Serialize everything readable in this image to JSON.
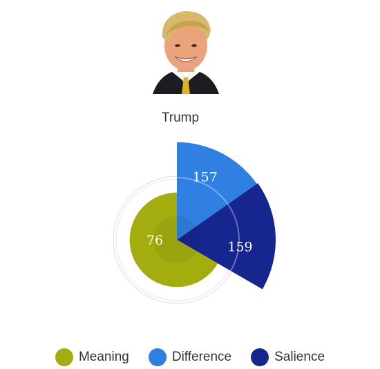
{
  "person": {
    "name": "Trump"
  },
  "colors": {
    "meaning": "#a3ad10",
    "difference": "#2f80e0",
    "salience": "#17258f"
  },
  "chart_data": {
    "type": "polar-area",
    "segments": [
      {
        "name": "Meaning",
        "value": 76,
        "label": "76",
        "color": "#a3ad10"
      },
      {
        "name": "Difference",
        "value": 157,
        "label": "157",
        "color": "#2f80e0"
      },
      {
        "name": "Salience",
        "value": 159,
        "label": "159",
        "color": "#17258f"
      }
    ],
    "legend": [
      "Meaning",
      "Difference",
      "Salience"
    ],
    "legend_position": "bottom"
  }
}
